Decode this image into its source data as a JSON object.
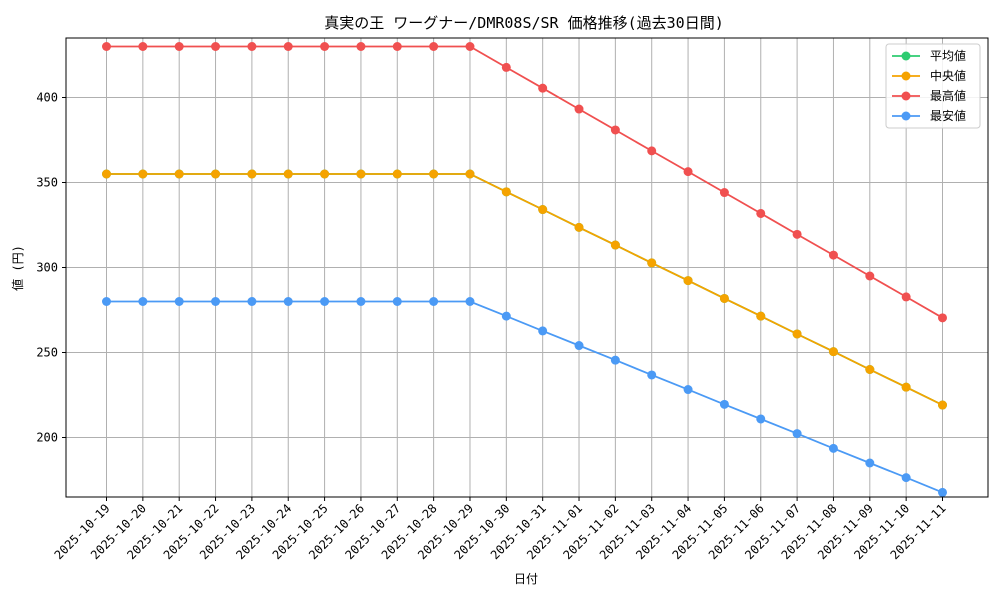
{
  "chart_data": {
    "type": "line",
    "title": "真実の王 ワーグナー/DMR08S/SR 価格推移(過去30日間)",
    "xlabel": "日付",
    "ylabel": "値 (円)",
    "ylim": [
      165,
      435
    ],
    "yticks": [
      200,
      250,
      300,
      350,
      400
    ],
    "grid": true,
    "legend_position": "top-right",
    "categories": [
      "2025-10-19",
      "2025-10-20",
      "2025-10-21",
      "2025-10-22",
      "2025-10-23",
      "2025-10-24",
      "2025-10-25",
      "2025-10-26",
      "2025-10-27",
      "2025-10-28",
      "2025-10-29",
      "2025-10-30",
      "2025-10-31",
      "2025-11-01",
      "2025-11-02",
      "2025-11-03",
      "2025-11-04",
      "2025-11-05",
      "2025-11-06",
      "2025-11-07",
      "2025-11-08",
      "2025-11-09",
      "2025-11-10",
      "2025-11-11"
    ],
    "series": [
      {
        "name": "平均値",
        "color": "#2ecc71",
        "values": [
          355,
          355,
          355,
          355,
          355,
          355,
          355,
          355,
          355,
          355,
          355,
          344.5,
          334.1,
          323.6,
          313.2,
          302.7,
          292.3,
          281.8,
          271.4,
          260.9,
          250.5,
          240.0,
          229.6,
          219.1
        ]
      },
      {
        "name": "中央値",
        "color": "#f5a300",
        "values": [
          355,
          355,
          355,
          355,
          355,
          355,
          355,
          355,
          355,
          355,
          355,
          344.5,
          334.1,
          323.6,
          313.2,
          302.7,
          292.3,
          281.8,
          271.4,
          260.9,
          250.5,
          240.0,
          229.6,
          219.1
        ]
      },
      {
        "name": "最高値",
        "color": "#f05050",
        "values": [
          430,
          430,
          430,
          430,
          430,
          430,
          430,
          430,
          430,
          430,
          430,
          417.7,
          405.5,
          393.2,
          380.9,
          368.6,
          356.4,
          344.1,
          331.8,
          319.5,
          307.3,
          295.0,
          282.7,
          270.4
        ]
      },
      {
        "name": "最安値",
        "color": "#4b9af5",
        "values": [
          280,
          280,
          280,
          280,
          280,
          280,
          280,
          280,
          280,
          280,
          280,
          271.4,
          262.7,
          254.1,
          245.5,
          236.8,
          228.2,
          219.5,
          210.9,
          202.3,
          193.6,
          185.0,
          176.4,
          167.7
        ]
      }
    ]
  }
}
